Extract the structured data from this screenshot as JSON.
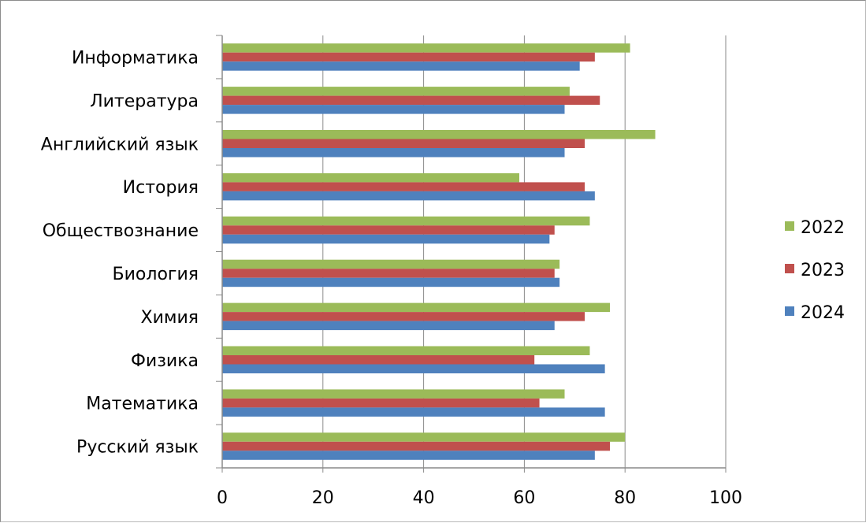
{
  "chart_data": {
    "type": "bar",
    "orientation": "horizontal",
    "categories": [
      "Русский язык",
      "Математика",
      "Физика",
      "Химия",
      "Биология",
      "Обществознание",
      "История",
      "Английский язык",
      "Литература",
      "Информатика"
    ],
    "series": [
      {
        "name": "2022",
        "color": "#9BBB59",
        "values": [
          80,
          68,
          73,
          77,
          67,
          73,
          59,
          86,
          69,
          81
        ]
      },
      {
        "name": "2023",
        "color": "#C0504D",
        "values": [
          77,
          63,
          62,
          72,
          66,
          66,
          72,
          72,
          75,
          74
        ]
      },
      {
        "name": "2024",
        "color": "#4F81BD",
        "values": [
          74,
          76,
          76,
          66,
          67,
          65,
          74,
          68,
          68,
          71
        ]
      }
    ],
    "xlim": [
      0,
      100
    ],
    "x_ticks": [
      "0",
      "20",
      "40",
      "60",
      "80",
      "100"
    ],
    "grid": "vertical major gridlines",
    "legend": "right"
  }
}
